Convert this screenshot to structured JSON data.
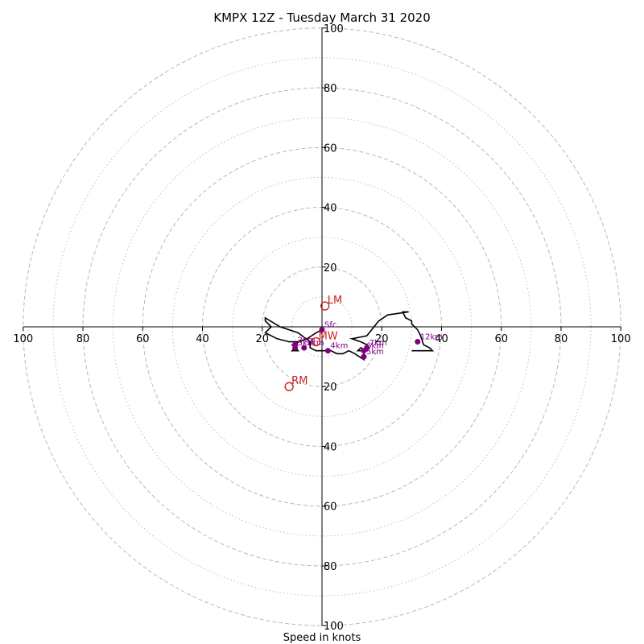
{
  "chart_data": {
    "type": "hodograph",
    "title": "KMPX 12Z - Tuesday March 31 2020",
    "xlabel": "Speed in knots",
    "range": [
      -100,
      100
    ],
    "ring_major": [
      20,
      40,
      60,
      80,
      100
    ],
    "ring_minor": [
      10,
      30,
      50,
      70,
      90
    ],
    "axis_ticks": [
      20,
      40,
      60,
      80,
      100
    ],
    "colors": {
      "trace": "#000000",
      "height_marker": "#800080",
      "motion_marker": "#cc2222",
      "grid": "#b8b8b8",
      "axis": "#000000"
    },
    "trace": [
      [
        0,
        -1
      ],
      [
        -2,
        -2
      ],
      [
        -5,
        -4
      ],
      [
        -8,
        -5
      ],
      [
        -9,
        -7
      ],
      [
        -10,
        -8
      ],
      [
        -8,
        -8
      ],
      [
        -9,
        -7
      ],
      [
        -10,
        -6
      ],
      [
        -8,
        -5
      ],
      [
        -11,
        -5
      ],
      [
        -15,
        -4
      ],
      [
        -19,
        -2
      ],
      [
        -17,
        0
      ],
      [
        -19,
        2
      ],
      [
        -19,
        3
      ],
      [
        -14,
        0
      ],
      [
        -8,
        -2
      ],
      [
        -4,
        -5
      ],
      [
        -4,
        -7
      ],
      [
        -2,
        -8
      ],
      [
        0,
        -8
      ],
      [
        3,
        -8
      ],
      [
        5,
        -9
      ],
      [
        7,
        -9
      ],
      [
        9,
        -8
      ],
      [
        11,
        -9
      ],
      [
        14,
        -11
      ],
      [
        14,
        -8
      ],
      [
        12,
        -8
      ],
      [
        13,
        -7
      ],
      [
        15,
        -8
      ],
      [
        15,
        -6
      ],
      [
        13,
        -5
      ],
      [
        10,
        -4
      ],
      [
        15,
        -3
      ],
      [
        19,
        2
      ],
      [
        22,
        4
      ],
      [
        29,
        5
      ],
      [
        27,
        5
      ],
      [
        28,
        3
      ],
      [
        30,
        2
      ],
      [
        30,
        1
      ],
      [
        32,
        -1
      ],
      [
        33,
        -3
      ],
      [
        34,
        -6
      ],
      [
        36,
        -7
      ],
      [
        37,
        -8
      ],
      [
        33,
        -8
      ],
      [
        31,
        -8
      ],
      [
        30,
        -8
      ]
    ],
    "height_markers": [
      {
        "label": "Sfc",
        "u": 0,
        "v": -1
      },
      {
        "label": "1km",
        "u": -6,
        "v": -7
      },
      {
        "label": "2km",
        "u": -9,
        "v": -6
      },
      {
        "label": "3km",
        "u": -9,
        "v": -7
      },
      {
        "label": "4km",
        "u": 2,
        "v": -8
      },
      {
        "label": "5km",
        "u": 14,
        "v": -10
      },
      {
        "label": "6km",
        "u": 14,
        "v": -8
      },
      {
        "label": "7km",
        "u": 15,
        "v": -7
      },
      {
        "label": "12km",
        "u": 32,
        "v": -5
      }
    ],
    "storm_motion": [
      {
        "label": "LM",
        "u": 1,
        "v": 7
      },
      {
        "label": "MW",
        "u": -2,
        "v": -5
      },
      {
        "label": "RM",
        "u": -11,
        "v": -20
      }
    ]
  }
}
